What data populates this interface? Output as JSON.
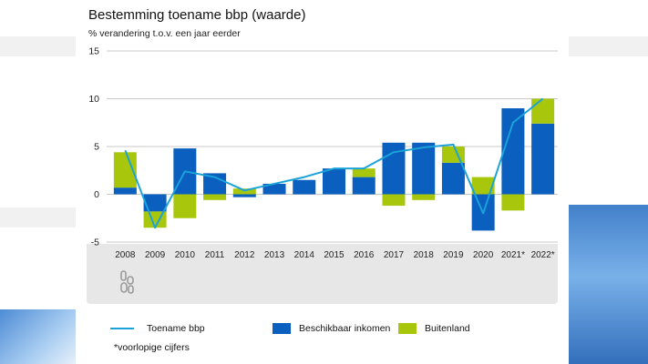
{
  "chart_data": {
    "type": "bar",
    "title": "Bestemming toename bbp (waarde)",
    "subtitle": "% verandering t.o.v. een jaar eerder",
    "categories": [
      "2008",
      "2009",
      "2010",
      "2011",
      "2012",
      "2013",
      "2014",
      "2015",
      "2016",
      "2017",
      "2018",
      "2019",
      "2020",
      "2021*",
      "2022*"
    ],
    "series": [
      {
        "name": "Beschikbaar inkomen",
        "kind": "bar",
        "color": "#0a5fbf",
        "values": [
          0.7,
          -1.8,
          4.8,
          2.2,
          -0.3,
          1.1,
          1.5,
          2.7,
          1.8,
          5.4,
          5.4,
          3.3,
          -3.8,
          9.0,
          7.4
        ]
      },
      {
        "name": "Buitenland",
        "kind": "bar",
        "color": "#a8c70c",
        "values": [
          3.7,
          -1.7,
          -2.5,
          -0.6,
          0.6,
          0.0,
          0.0,
          0.0,
          0.9,
          -1.2,
          -0.6,
          1.7,
          1.8,
          -1.7,
          2.6
        ]
      },
      {
        "name": "Toename bbp",
        "kind": "line",
        "color": "#1aa3d9",
        "values": [
          4.6,
          -3.5,
          2.4,
          1.8,
          0.4,
          1.1,
          1.8,
          2.7,
          2.7,
          4.4,
          4.9,
          5.2,
          -2.0,
          7.5,
          10.0
        ]
      }
    ],
    "ylim": [
      -5,
      15
    ],
    "yticks": [
      -5,
      0,
      5,
      10,
      15
    ],
    "grid": true,
    "legend_position": "bottom",
    "xlabel": "",
    "ylabel": ""
  },
  "legend": {
    "line_label": "Toename bbp",
    "income_label": "Beschikbaar inkomen",
    "foreign_label": "Buitenland"
  },
  "footnote": "*voorlopige cijfers",
  "colors": {
    "line": "#1aa3d9",
    "income": "#0a5fbf",
    "foreign": "#a8c70c",
    "grid": "#c8c8c8"
  }
}
